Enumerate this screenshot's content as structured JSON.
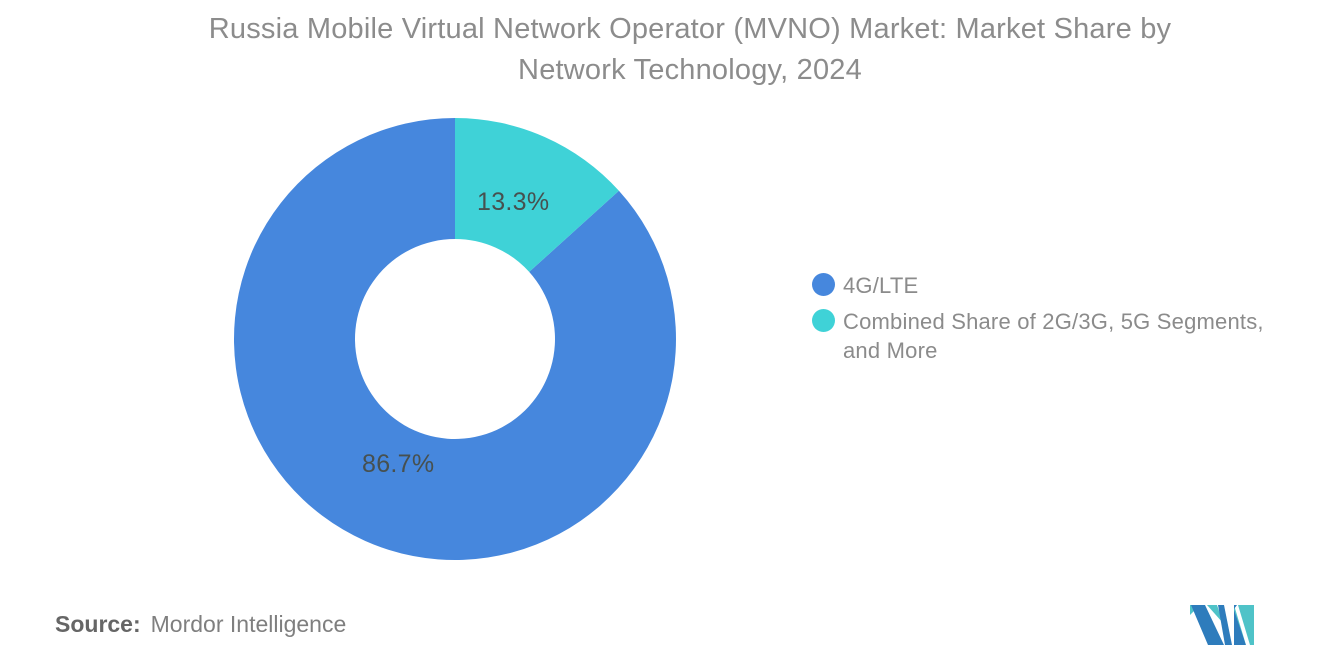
{
  "title": {
    "line1": "Russia Mobile Virtual Network Operator (MVNO) Market: Market Share by",
    "line2": "Network Technology, 2024"
  },
  "legend": [
    {
      "label": "4G/LTE",
      "color": "#4687dd"
    },
    {
      "label": "Combined Share of 2G/3G, 5G Segments, and More",
      "color": "#3fd2d7"
    }
  ],
  "source": {
    "label": "Source:",
    "value": "Mordor Intelligence"
  },
  "logo": {
    "name": "mordor-intelligence-logo",
    "blue": "#2e7cbc",
    "teal": "#4fc3c8",
    "white": "#ffffff"
  },
  "chart_data": {
    "type": "pie",
    "subtype": "donut",
    "title": "Russia Mobile Virtual Network Operator (MVNO) Market: Market Share by Network Technology, 2024",
    "categories": [
      "4G/LTE",
      "Combined Share of 2G/3G, 5G Segments, and More"
    ],
    "values": [
      86.7,
      13.3
    ],
    "labels": [
      "86.7%",
      "13.3%"
    ],
    "colors": [
      "#4687dd",
      "#3fd2d7"
    ],
    "unit": "%",
    "start_angle_deg": 47.88,
    "direction": "clockwise",
    "outer_radius_px": 221,
    "inner_radius_px": 100,
    "legend_position": "right",
    "label_color": "#47504f"
  }
}
